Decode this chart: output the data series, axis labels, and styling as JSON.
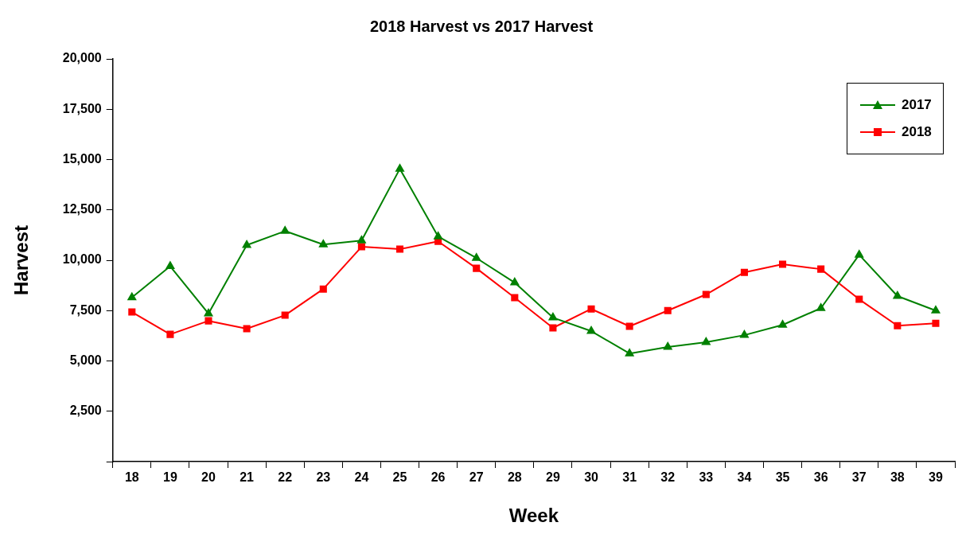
{
  "chart_data": {
    "type": "line",
    "title": "2018 Harvest vs 2017 Harvest",
    "xlabel": "Week",
    "ylabel": "Harvest",
    "categories": [
      "18",
      "19",
      "20",
      "21",
      "22",
      "23",
      "24",
      "25",
      "26",
      "27",
      "28",
      "29",
      "30",
      "31",
      "32",
      "33",
      "34",
      "35",
      "36",
      "37",
      "38",
      "39"
    ],
    "series": [
      {
        "name": "2017",
        "color": "#008000",
        "marker": "triangle",
        "values": [
          8150,
          9700,
          7350,
          10750,
          11450,
          10780,
          10980,
          14540,
          11180,
          10110,
          8890,
          7150,
          6480,
          5370,
          5690,
          5930,
          6280,
          6790,
          7620,
          10270,
          8220,
          7500
        ]
      },
      {
        "name": "2018",
        "color": "#ff0000",
        "marker": "square",
        "values": [
          7430,
          6320,
          6990,
          6600,
          7270,
          8570,
          10670,
          10550,
          10940,
          9600,
          8140,
          6640,
          7580,
          6720,
          7500,
          8300,
          9400,
          9800,
          9560,
          8060,
          6750,
          6870
        ]
      }
    ],
    "ylim": [
      0,
      20000
    ],
    "yticks": [
      {
        "value": 0,
        "label": null
      },
      {
        "value": 2500,
        "label": "2,500"
      },
      {
        "value": 5000,
        "label": "5,000"
      },
      {
        "value": 7500,
        "label": "7,500"
      },
      {
        "value": 10000,
        "label": "10,000"
      },
      {
        "value": 12500,
        "label": "12,500"
      },
      {
        "value": 15000,
        "label": "15,000"
      },
      {
        "value": 17500,
        "label": "17,500"
      },
      {
        "value": 20000,
        "label": "20,000"
      }
    ],
    "grid": false,
    "legend": "top right",
    "line_style": "solid"
  }
}
